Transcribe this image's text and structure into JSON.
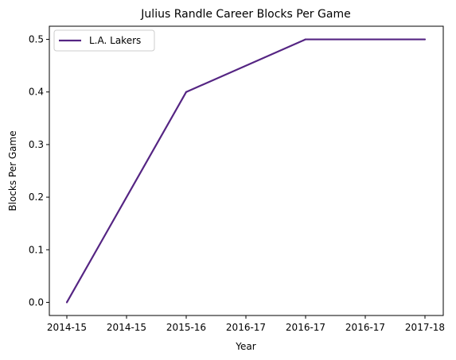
{
  "chart_data": {
    "type": "line",
    "title": "Julius Randle Career Blocks Per Game",
    "xlabel": "Year",
    "ylabel": "Blocks Per Game",
    "x_tick_labels": [
      "2014-15",
      "2014-15",
      "2015-16",
      "2016-17",
      "2016-17",
      "2016-17",
      "2017-18"
    ],
    "y_ticks": [
      0.0,
      0.1,
      0.2,
      0.3,
      0.4,
      0.5
    ],
    "y_tick_labels": [
      "0.0",
      "0.1",
      "0.2",
      "0.3",
      "0.4",
      "0.5"
    ],
    "ylim": [
      -0.025,
      0.525
    ],
    "grid": false,
    "legend_position": "upper-left",
    "series": [
      {
        "name": "L.A. Lakers",
        "color": "#552583",
        "x": [
          "2014-15",
          "2015-16",
          "2016-17",
          "2017-18"
        ],
        "values": [
          0.0,
          0.4,
          0.5,
          0.5
        ]
      }
    ]
  }
}
